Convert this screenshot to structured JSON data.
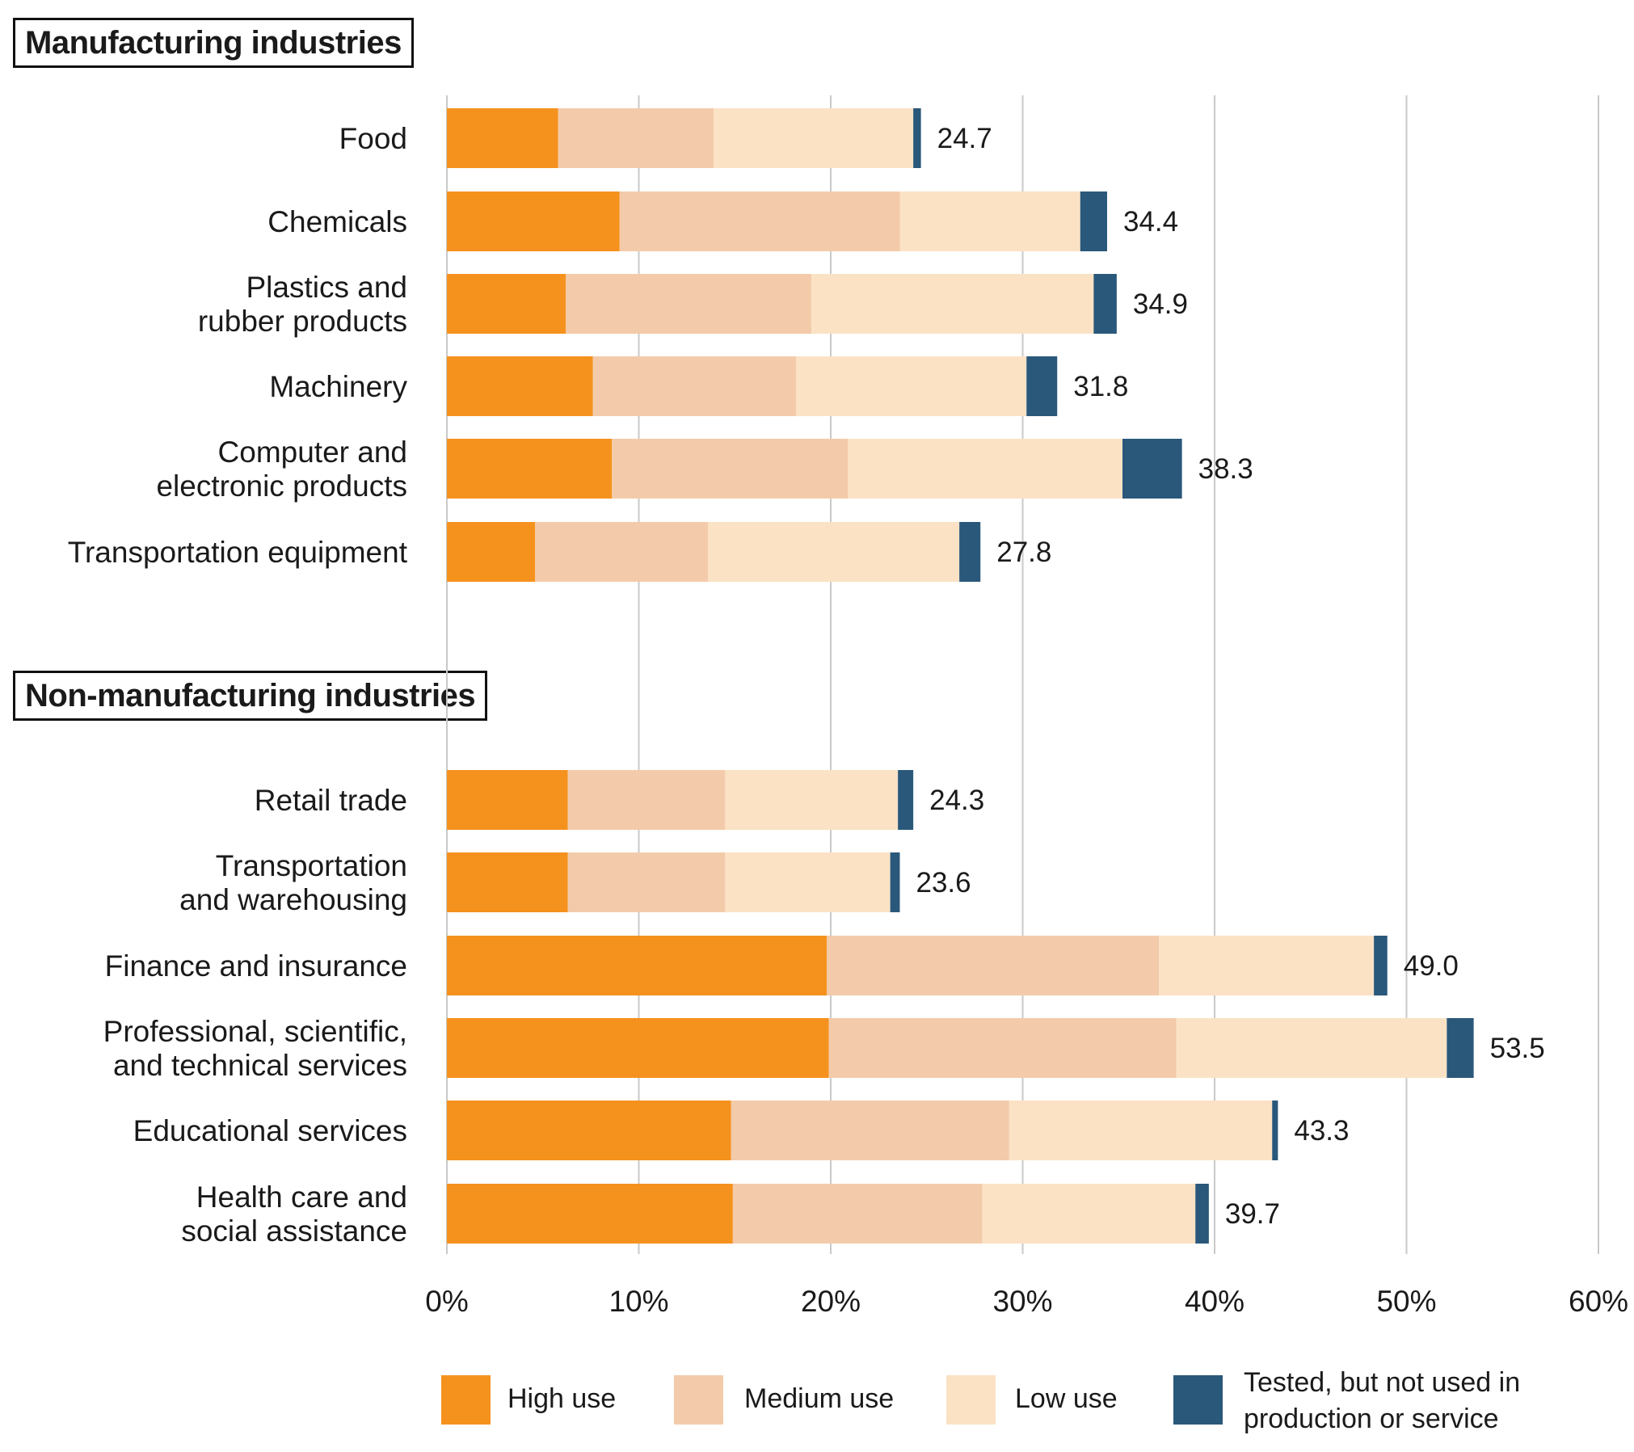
{
  "chart_data": {
    "type": "bar",
    "orientation": "horizontal",
    "stacked": true,
    "sections": [
      {
        "title": "Manufacturing industries",
        "categories": [
          {
            "label": [
              "Food"
            ],
            "values": [
              5.8,
              8.1,
              10.4,
              0.4
            ],
            "total": "24.7"
          },
          {
            "label": [
              "Chemicals"
            ],
            "values": [
              9.0,
              14.6,
              9.4,
              1.4
            ],
            "total": "34.4"
          },
          {
            "label": [
              "Plastics and",
              "rubber products"
            ],
            "values": [
              6.2,
              12.8,
              14.7,
              1.2
            ],
            "total": "34.9"
          },
          {
            "label": [
              "Machinery"
            ],
            "values": [
              7.6,
              10.6,
              12.0,
              1.6
            ],
            "total": "31.8"
          },
          {
            "label": [
              "Computer and",
              "electronic products"
            ],
            "values": [
              8.6,
              12.3,
              14.3,
              3.1
            ],
            "total": "38.3"
          },
          {
            "label": [
              "Transportation equipment"
            ],
            "values": [
              4.6,
              9.0,
              13.1,
              1.1
            ],
            "total": "27.8"
          }
        ]
      },
      {
        "title": "Non-manufacturing industries",
        "categories": [
          {
            "label": [
              "Retail trade"
            ],
            "values": [
              6.3,
              8.2,
              9.0,
              0.8
            ],
            "total": "24.3"
          },
          {
            "label": [
              "Transportation",
              "and warehousing"
            ],
            "values": [
              6.3,
              8.2,
              8.6,
              0.5
            ],
            "total": "23.6"
          },
          {
            "label": [
              "Finance and insurance"
            ],
            "values": [
              19.8,
              17.3,
              11.2,
              0.7
            ],
            "total": "49.0"
          },
          {
            "label": [
              "Professional, scientific,",
              "and technical services"
            ],
            "values": [
              19.9,
              18.1,
              14.1,
              1.4
            ],
            "total": "53.5"
          },
          {
            "label": [
              "Educational services"
            ],
            "values": [
              14.8,
              14.5,
              13.7,
              0.3
            ],
            "total": "43.3"
          },
          {
            "label": [
              "Health care and",
              "social assistance"
            ],
            "values": [
              14.9,
              13.0,
              11.1,
              0.7
            ],
            "total": "39.7"
          }
        ]
      }
    ],
    "series": [
      {
        "name": "High use",
        "color": "#F5921E"
      },
      {
        "name": "Medium use",
        "color": "#F3CBAA"
      },
      {
        "name": "Low use",
        "color": "#FBE2C5"
      },
      {
        "name": "Tested, but not used in production or service",
        "color": "#2A587A"
      }
    ],
    "legend_lines": {
      "tested": [
        "Tested, but not used in",
        "production or service"
      ]
    },
    "x_ticks": [
      "0%",
      "10%",
      "20%",
      "30%",
      "40%",
      "50%",
      "60%"
    ],
    "xlim": [
      0,
      60
    ],
    "grid": true,
    "legend_position": "bottom"
  }
}
